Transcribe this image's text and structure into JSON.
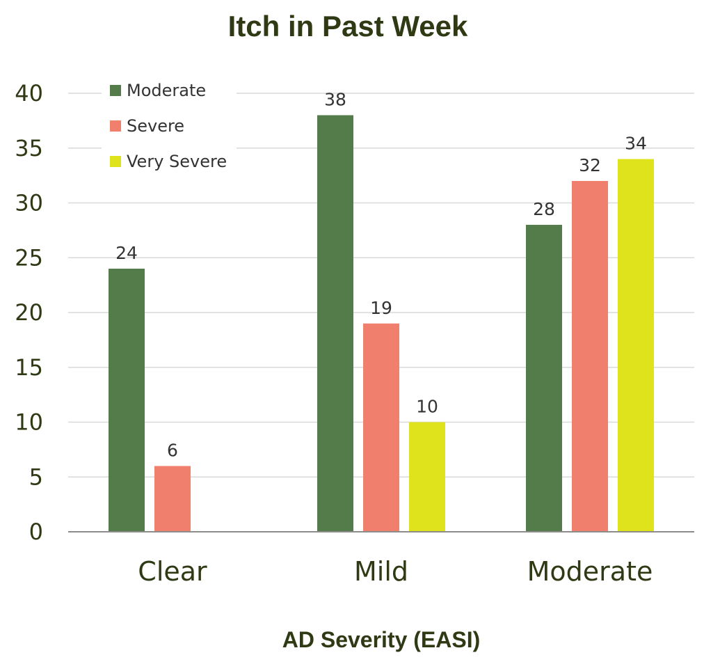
{
  "chart_data": {
    "type": "bar",
    "title": "Itch in Past Week",
    "xlabel": "AD Severity (EASI)",
    "ylabel": "",
    "categories": [
      "Clear",
      "Mild",
      "Moderate"
    ],
    "ylim": [
      0,
      40
    ],
    "yticks": [
      0,
      5,
      10,
      15,
      20,
      25,
      30,
      35,
      40
    ],
    "grid": true,
    "legend_position": "top-left",
    "series": [
      {
        "name": "Moderate",
        "color": "#537c4a",
        "values": [
          24,
          38,
          28
        ]
      },
      {
        "name": "Severe",
        "color": "#f07f6d",
        "values": [
          6,
          19,
          32
        ]
      },
      {
        "name": "Very Severe",
        "color": "#dfe31b",
        "values": [
          null,
          10,
          34
        ]
      }
    ]
  }
}
